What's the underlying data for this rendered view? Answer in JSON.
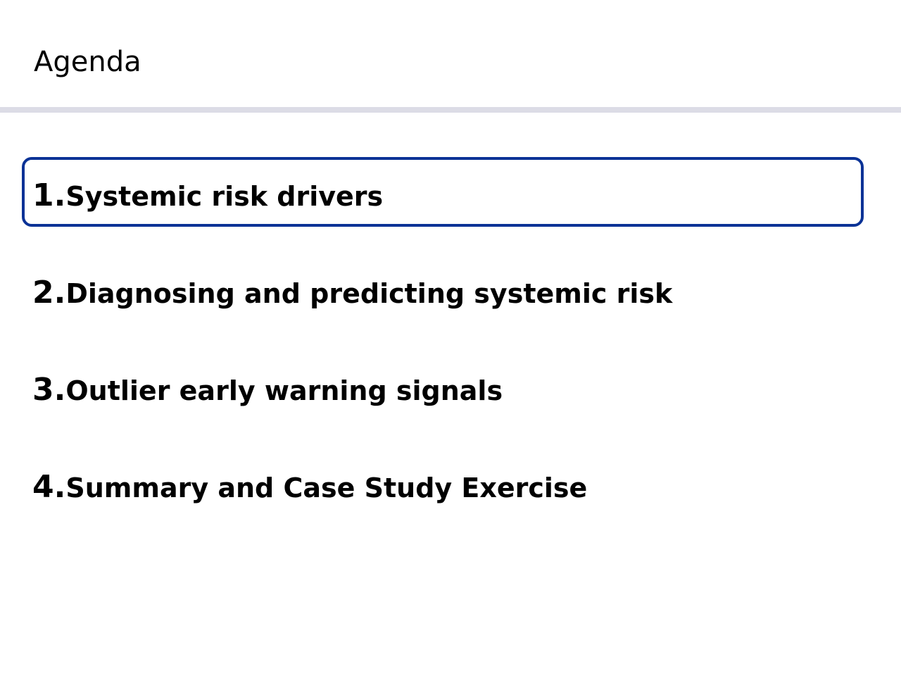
{
  "slide": {
    "title": "Agenda"
  },
  "agenda": {
    "highlight_color": "#0a3296",
    "active_item": 1,
    "items": [
      {
        "number": "1.",
        "label": "Systemic risk drivers"
      },
      {
        "number": "2.",
        "label": "Diagnosing and predicting systemic risk"
      },
      {
        "number": "3.",
        "label": "Outlier early warning signals"
      },
      {
        "number": "4.",
        "label": "Summary and Case Study Exercise"
      }
    ]
  }
}
